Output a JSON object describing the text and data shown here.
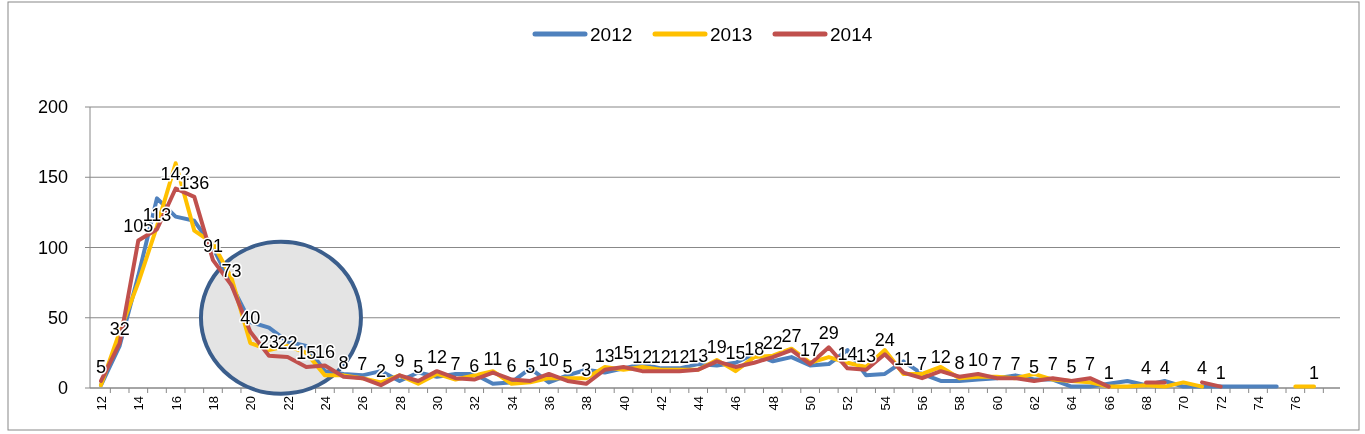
{
  "chart_data": {
    "type": "line",
    "categories": [
      "12",
      null,
      "14",
      null,
      "16",
      null,
      "18",
      null,
      "20",
      null,
      "22",
      null,
      "24",
      null,
      "26",
      null,
      "28",
      null,
      "30",
      null,
      "32",
      null,
      "34",
      null,
      "36",
      null,
      "38",
      null,
      "40",
      null,
      "42",
      null,
      "44",
      null,
      "46",
      null,
      "48",
      null,
      "50",
      null,
      "52",
      null,
      "54",
      null,
      "56",
      null,
      "58",
      null,
      "60",
      null,
      "62",
      null,
      "64",
      null,
      "66",
      null,
      "68",
      null,
      "70",
      null,
      "72",
      null,
      "74",
      null,
      "76",
      null
    ],
    "series": [
      {
        "name": "2012",
        "color": "#4f81bd",
        "values": [
          2,
          30,
          80,
          135,
          122,
          119,
          100,
          73,
          47,
          43,
          33,
          30,
          12,
          10,
          9,
          12,
          5,
          11,
          8,
          10,
          10,
          3,
          4,
          14,
          4,
          9,
          13,
          11,
          14,
          17,
          14,
          14,
          17,
          16,
          18,
          24,
          19,
          22,
          16,
          17,
          27,
          9,
          10,
          19,
          10,
          5,
          5,
          6,
          7,
          9,
          6,
          6,
          1,
          1,
          3,
          5,
          2,
          5,
          1,
          1,
          1,
          1,
          1,
          1,
          null,
          null
        ]
      },
      {
        "name": "2013",
        "color": "#ffc000",
        "values": [
          2,
          40,
          75,
          115,
          160,
          112,
          103,
          78,
          32,
          27,
          30,
          25,
          9,
          9,
          7,
          4,
          9,
          3,
          10,
          6,
          9,
          12,
          3,
          4,
          7,
          7,
          7,
          15,
          13,
          15,
          13,
          13,
          13,
          20,
          12,
          22,
          23,
          28,
          18,
          22,
          18,
          15,
          27,
          10,
          10,
          15,
          7,
          8,
          8,
          7,
          10,
          6,
          5,
          4,
          1,
          1,
          2,
          1,
          4,
          1,
          null,
          null,
          null,
          null,
          1,
          1
        ],
        "value_labels": [
          null,
          null,
          null,
          null,
          null,
          null,
          null,
          null,
          null,
          null,
          null,
          null,
          null,
          null,
          null,
          null,
          null,
          null,
          null,
          null,
          null,
          null,
          null,
          null,
          null,
          null,
          null,
          null,
          null,
          null,
          null,
          null,
          null,
          null,
          null,
          null,
          null,
          null,
          null,
          null,
          null,
          null,
          null,
          null,
          null,
          null,
          null,
          null,
          null,
          null,
          null,
          null,
          null,
          null,
          null,
          null,
          null,
          null,
          null,
          null,
          null,
          null,
          null,
          null,
          null,
          "1"
        ]
      },
      {
        "name": "2014",
        "color": "#c0504d",
        "values": [
          5,
          32,
          105,
          113,
          142,
          136,
          91,
          73,
          40,
          23,
          22,
          15,
          16,
          8,
          7,
          2,
          9,
          5,
          12,
          7,
          6,
          11,
          6,
          5,
          10,
          5,
          3,
          13,
          15,
          12,
          12,
          12,
          13,
          19,
          15,
          18,
          22,
          27,
          17,
          29,
          14,
          13,
          24,
          11,
          7,
          12,
          8,
          10,
          7,
          7,
          5,
          7,
          5,
          7,
          1,
          null,
          4,
          4,
          null,
          4,
          1,
          null,
          null,
          null,
          null,
          null
        ],
        "value_labels": [
          "5",
          "32",
          "105",
          "113",
          "142",
          "136",
          "91",
          "73",
          "40",
          "23",
          "22",
          "15",
          "16",
          "8",
          "7",
          "2",
          "9",
          "5",
          "12",
          "7",
          "6",
          "11",
          "6",
          "5",
          "10",
          "5",
          "3",
          "13",
          "15",
          "12",
          "12",
          "12",
          "13",
          "19",
          "15",
          "18",
          "22",
          "27",
          "17",
          "29",
          "14",
          "13",
          "24",
          "11",
          "7",
          "12",
          "8",
          "10",
          "7",
          "7",
          "5",
          "7",
          "5",
          "7",
          "1",
          null,
          "4",
          "4",
          null,
          "4",
          "1",
          null,
          null,
          null,
          null,
          null
        ]
      }
    ],
    "ylim": [
      0,
      200
    ],
    "yticks": [
      0,
      50,
      100,
      150,
      200
    ],
    "grid": "y",
    "legend": "top",
    "marker": "none",
    "line_style": "solid"
  }
}
